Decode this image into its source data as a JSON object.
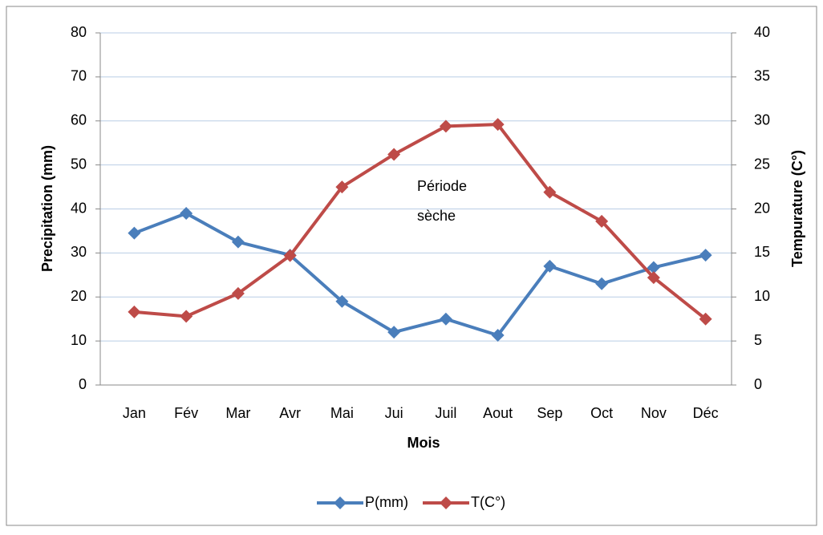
{
  "chart_data": {
    "type": "line",
    "x_label": "Mois",
    "y_label": "Precipitation (mm)",
    "y2_label": "Tempurature (C°)",
    "annotation": [
      "Période",
      "sèche"
    ],
    "categories": [
      "Jan",
      "Fév",
      "Mar",
      "Avr",
      "Mai",
      "Jui",
      "Juil",
      "Aout",
      "Sep",
      "Oct",
      "Nov",
      "Déc"
    ],
    "series": [
      {
        "name": "P(mm)",
        "color": "#4a7ebb",
        "values": [
          34.5,
          39,
          32.5,
          29.5,
          19,
          12,
          15,
          11.3,
          27,
          23,
          26.7,
          29.5
        ]
      },
      {
        "name": "T(C°)",
        "color": "#be4b48",
        "axis": "y2",
        "values": [
          8.3,
          7.8,
          10.4,
          14.7,
          22.5,
          26.2,
          29.4,
          29.6,
          21.9,
          18.6,
          12.2,
          7.5
        ]
      }
    ],
    "ylim": [
      0,
      80
    ],
    "yticks": [
      0,
      10,
      20,
      30,
      40,
      50,
      60,
      70,
      80
    ],
    "y2lim": [
      0,
      40
    ],
    "y2ticks": [
      0,
      5,
      10,
      15,
      20,
      25,
      30,
      35,
      40
    ],
    "grid": true,
    "legend": "bottom"
  }
}
